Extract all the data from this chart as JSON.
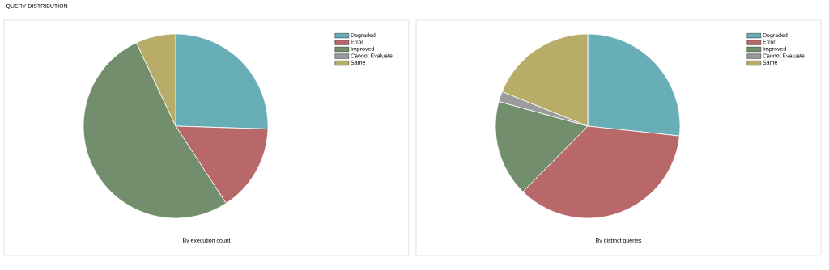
{
  "chart_data": [
    {
      "type": "pie",
      "title": "QUERY DISTRIBUTION",
      "categories": [
        "Degraded",
        "Error",
        "Improved",
        "Cannot Evaluate",
        "Same"
      ],
      "values": [
        25.5,
        15.3,
        52.2,
        0,
        7
      ],
      "colors": [
        "#67aeb6",
        "#b86868",
        "#738e6c",
        "#9b9b9b",
        "#b8ad68"
      ],
      "legend": "top right",
      "annotations": [
        "By execution count"
      ]
    },
    {
      "type": "pie",
      "categories": [
        "Degraded",
        "Error",
        "Improved",
        "Cannot Evaluate",
        "Same"
      ],
      "values": [
        26.7,
        35.7,
        16.9,
        1.8,
        18.9
      ],
      "colors": [
        "#67aeb6",
        "#b86868",
        "#738e6c",
        "#9b9b9b",
        "#b8ad68"
      ],
      "legend": "top right",
      "annotations": [
        "By distinct queries"
      ]
    }
  ]
}
